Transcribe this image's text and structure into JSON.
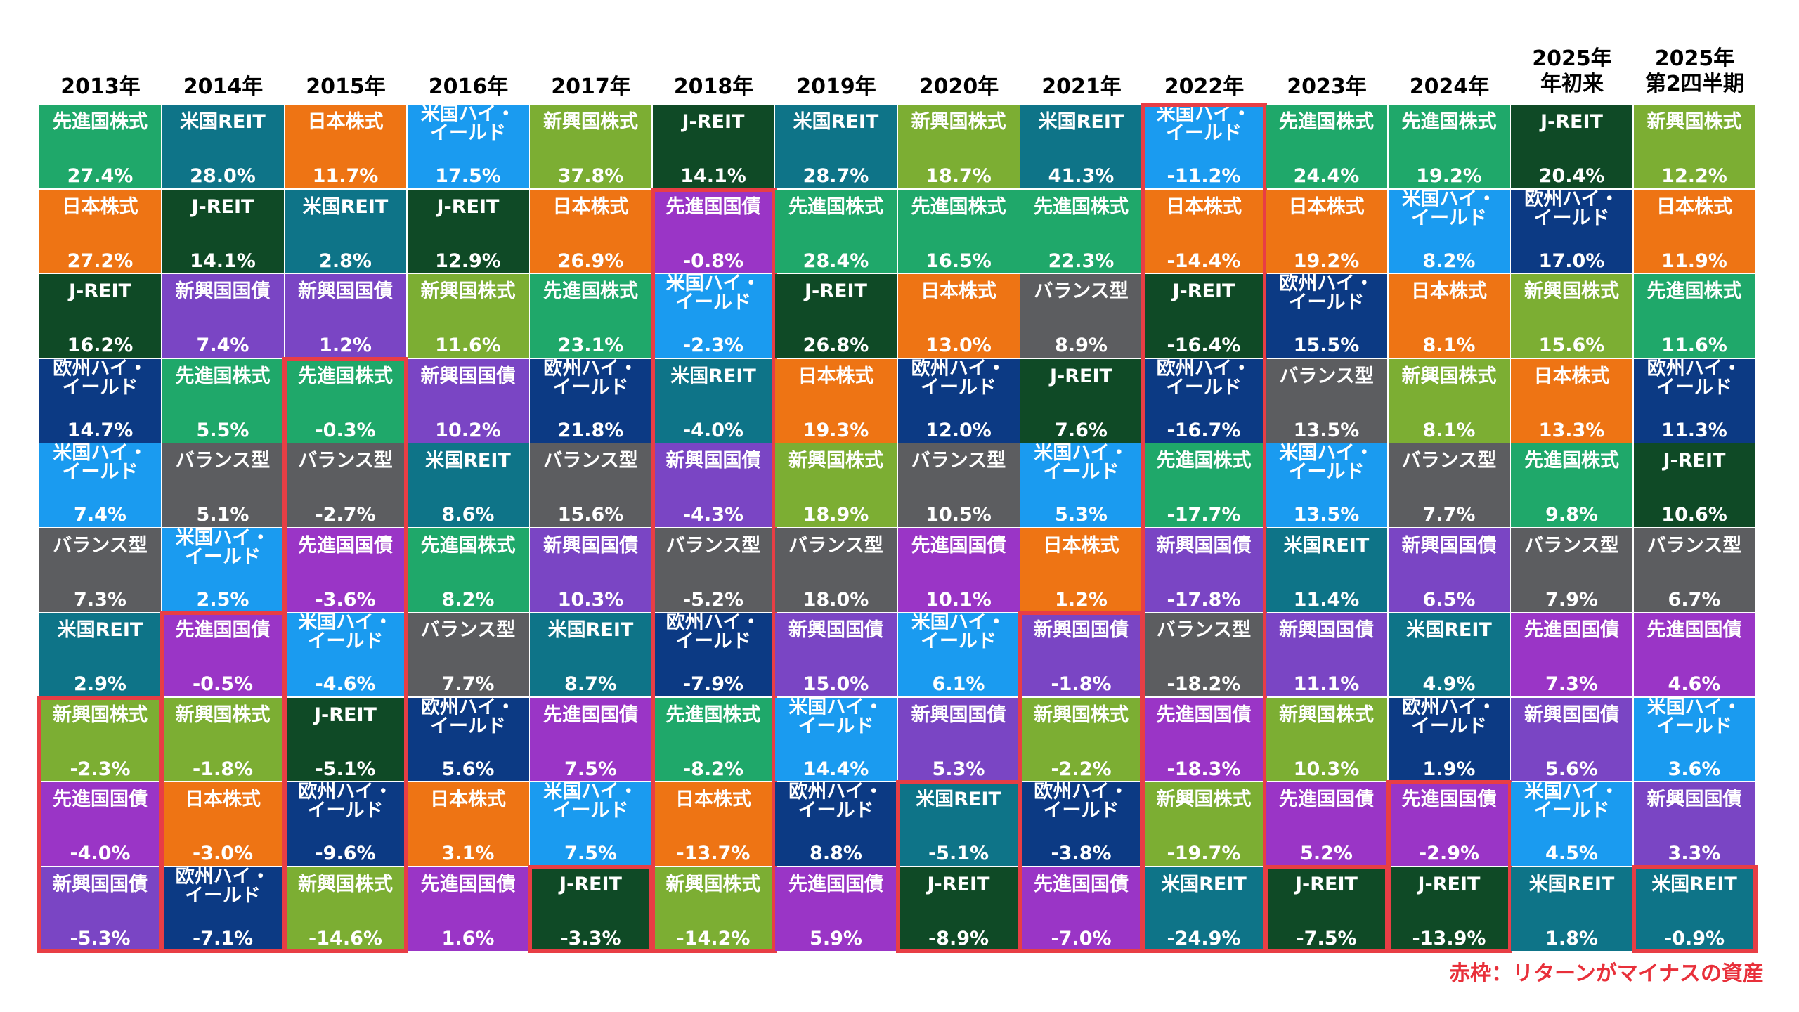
{
  "colors": {
    "先進国株式": "#1fa86a",
    "米国REIT": "#0e7488",
    "日本株式": "#ee7414",
    "米国ハイ・イールド": "#1a9bf0",
    "新興国株式": "#7cae33",
    "J-REIT": "#0f4a26",
    "新興国国債": "#7a45c4",
    "欧州ハイ・イールド": "#0c3a84",
    "バランス型": "#5c5d60",
    "先進国国債": "#9a35c6",
    "highlight": "#e83e45"
  },
  "note": "赤枠：リターンがマイナスの資産",
  "chart_data": {
    "type": "table",
    "title": "",
    "columns": [
      {
        "year": [
          "2013年"
        ],
        "cells": [
          {
            "asset": "先進国株式",
            "value": "27.4%"
          },
          {
            "asset": "日本株式",
            "value": "27.2%"
          },
          {
            "asset": "J-REIT",
            "value": "16.2%"
          },
          {
            "asset": "欧州ハイ・イールド",
            "value": "14.7%"
          },
          {
            "asset": "米国ハイ・イールド",
            "value": "7.4%"
          },
          {
            "asset": "バランス型",
            "value": "7.3%"
          },
          {
            "asset": "米国REIT",
            "value": "2.9%"
          },
          {
            "asset": "新興国株式",
            "value": "-2.3%"
          },
          {
            "asset": "先進国国債",
            "value": "-4.0%"
          },
          {
            "asset": "新興国国債",
            "value": "-5.3%"
          }
        ]
      },
      {
        "year": [
          "2014年"
        ],
        "cells": [
          {
            "asset": "米国REIT",
            "value": "28.0%"
          },
          {
            "asset": "J-REIT",
            "value": "14.1%"
          },
          {
            "asset": "新興国国債",
            "value": "7.4%"
          },
          {
            "asset": "先進国株式",
            "value": "5.5%"
          },
          {
            "asset": "バランス型",
            "value": "5.1%"
          },
          {
            "asset": "米国ハイ・イールド",
            "value": "2.5%"
          },
          {
            "asset": "先進国国債",
            "value": "-0.5%"
          },
          {
            "asset": "新興国株式",
            "value": "-1.8%"
          },
          {
            "asset": "日本株式",
            "value": "-3.0%"
          },
          {
            "asset": "欧州ハイ・イールド",
            "value": "-7.1%"
          }
        ]
      },
      {
        "year": [
          "2015年"
        ],
        "cells": [
          {
            "asset": "日本株式",
            "value": "11.7%"
          },
          {
            "asset": "米国REIT",
            "value": "2.8%"
          },
          {
            "asset": "新興国国債",
            "value": "1.2%"
          },
          {
            "asset": "先進国株式",
            "value": "-0.3%"
          },
          {
            "asset": "バランス型",
            "value": "-2.7%"
          },
          {
            "asset": "先進国国債",
            "value": "-3.6%"
          },
          {
            "asset": "米国ハイ・イールド",
            "value": "-4.6%"
          },
          {
            "asset": "J-REIT",
            "value": "-5.1%"
          },
          {
            "asset": "欧州ハイ・イールド",
            "value": "-9.6%"
          },
          {
            "asset": "新興国株式",
            "value": "-14.6%"
          }
        ]
      },
      {
        "year": [
          "2016年"
        ],
        "cells": [
          {
            "asset": "米国ハイ・イールド",
            "value": "17.5%"
          },
          {
            "asset": "J-REIT",
            "value": "12.9%"
          },
          {
            "asset": "新興国株式",
            "value": "11.6%"
          },
          {
            "asset": "新興国国債",
            "value": "10.2%"
          },
          {
            "asset": "米国REIT",
            "value": "8.6%"
          },
          {
            "asset": "先進国株式",
            "value": "8.2%"
          },
          {
            "asset": "バランス型",
            "value": "7.7%"
          },
          {
            "asset": "欧州ハイ・イールド",
            "value": "5.6%"
          },
          {
            "asset": "日本株式",
            "value": "3.1%"
          },
          {
            "asset": "先進国国債",
            "value": "1.6%"
          }
        ]
      },
      {
        "year": [
          "2017年"
        ],
        "cells": [
          {
            "asset": "新興国株式",
            "value": "37.8%"
          },
          {
            "asset": "日本株式",
            "value": "26.9%"
          },
          {
            "asset": "先進国株式",
            "value": "23.1%"
          },
          {
            "asset": "欧州ハイ・イールド",
            "value": "21.8%"
          },
          {
            "asset": "バランス型",
            "value": "15.6%"
          },
          {
            "asset": "新興国国債",
            "value": "10.3%"
          },
          {
            "asset": "米国REIT",
            "value": "8.7%"
          },
          {
            "asset": "先進国国債",
            "value": "7.5%"
          },
          {
            "asset": "米国ハイ・イールド",
            "value": "7.5%"
          },
          {
            "asset": "J-REIT",
            "value": "-3.3%"
          }
        ]
      },
      {
        "year": [
          "2018年"
        ],
        "cells": [
          {
            "asset": "J-REIT",
            "value": "14.1%"
          },
          {
            "asset": "先進国国債",
            "value": "-0.8%"
          },
          {
            "asset": "米国ハイ・イールド",
            "value": "-2.3%"
          },
          {
            "asset": "米国REIT",
            "value": "-4.0%"
          },
          {
            "asset": "新興国国債",
            "value": "-4.3%"
          },
          {
            "asset": "バランス型",
            "value": "-5.2%"
          },
          {
            "asset": "欧州ハイ・イールド",
            "value": "-7.9%"
          },
          {
            "asset": "先進国株式",
            "value": "-8.2%"
          },
          {
            "asset": "日本株式",
            "value": "-13.7%"
          },
          {
            "asset": "新興国株式",
            "value": "-14.2%"
          }
        ]
      },
      {
        "year": [
          "2019年"
        ],
        "cells": [
          {
            "asset": "米国REIT",
            "value": "28.7%"
          },
          {
            "asset": "先進国株式",
            "value": "28.4%"
          },
          {
            "asset": "J-REIT",
            "value": "26.8%"
          },
          {
            "asset": "日本株式",
            "value": "19.3%"
          },
          {
            "asset": "新興国株式",
            "value": "18.9%"
          },
          {
            "asset": "バランス型",
            "value": "18.0%"
          },
          {
            "asset": "新興国国債",
            "value": "15.0%"
          },
          {
            "asset": "米国ハイ・イールド",
            "value": "14.4%"
          },
          {
            "asset": "欧州ハイ・イールド",
            "value": "8.8%"
          },
          {
            "asset": "先進国国債",
            "value": "5.9%"
          }
        ]
      },
      {
        "year": [
          "2020年"
        ],
        "cells": [
          {
            "asset": "新興国株式",
            "value": "18.7%"
          },
          {
            "asset": "先進国株式",
            "value": "16.5%"
          },
          {
            "asset": "日本株式",
            "value": "13.0%"
          },
          {
            "asset": "欧州ハイ・イールド",
            "value": "12.0%"
          },
          {
            "asset": "バランス型",
            "value": "10.5%"
          },
          {
            "asset": "先進国国債",
            "value": "10.1%"
          },
          {
            "asset": "米国ハイ・イールド",
            "value": "6.1%"
          },
          {
            "asset": "新興国国債",
            "value": "5.3%"
          },
          {
            "asset": "米国REIT",
            "value": "-5.1%"
          },
          {
            "asset": "J-REIT",
            "value": "-8.9%"
          }
        ]
      },
      {
        "year": [
          "2021年"
        ],
        "cells": [
          {
            "asset": "米国REIT",
            "value": "41.3%"
          },
          {
            "asset": "先進国株式",
            "value": "22.3%"
          },
          {
            "asset": "バランス型",
            "value": "8.9%"
          },
          {
            "asset": "J-REIT",
            "value": "7.6%"
          },
          {
            "asset": "米国ハイ・イールド",
            "value": "5.3%"
          },
          {
            "asset": "日本株式",
            "value": "1.2%"
          },
          {
            "asset": "新興国国債",
            "value": "-1.8%"
          },
          {
            "asset": "新興国株式",
            "value": "-2.2%"
          },
          {
            "asset": "欧州ハイ・イールド",
            "value": "-3.8%"
          },
          {
            "asset": "先進国国債",
            "value": "-7.0%"
          }
        ]
      },
      {
        "year": [
          "2022年"
        ],
        "cells": [
          {
            "asset": "米国ハイ・イールド",
            "value": "-11.2%"
          },
          {
            "asset": "日本株式",
            "value": "-14.4%"
          },
          {
            "asset": "J-REIT",
            "value": "-16.4%"
          },
          {
            "asset": "欧州ハイ・イールド",
            "value": "-16.7%"
          },
          {
            "asset": "先進国株式",
            "value": "-17.7%"
          },
          {
            "asset": "新興国国債",
            "value": "-17.8%"
          },
          {
            "asset": "バランス型",
            "value": "-18.2%"
          },
          {
            "asset": "先進国国債",
            "value": "-18.3%"
          },
          {
            "asset": "新興国株式",
            "value": "-19.7%"
          },
          {
            "asset": "米国REIT",
            "value": "-24.9%"
          }
        ]
      },
      {
        "year": [
          "2023年"
        ],
        "cells": [
          {
            "asset": "先進国株式",
            "value": "24.4%"
          },
          {
            "asset": "日本株式",
            "value": "19.2%"
          },
          {
            "asset": "欧州ハイ・イールド",
            "value": "15.5%"
          },
          {
            "asset": "バランス型",
            "value": "13.5%"
          },
          {
            "asset": "米国ハイ・イールド",
            "value": "13.5%"
          },
          {
            "asset": "米国REIT",
            "value": "11.4%"
          },
          {
            "asset": "新興国国債",
            "value": "11.1%"
          },
          {
            "asset": "新興国株式",
            "value": "10.3%"
          },
          {
            "asset": "先進国国債",
            "value": "5.2%"
          },
          {
            "asset": "J-REIT",
            "value": "-7.5%"
          }
        ]
      },
      {
        "year": [
          "2024年"
        ],
        "cells": [
          {
            "asset": "先進国株式",
            "value": "19.2%"
          },
          {
            "asset": "米国ハイ・イールド",
            "value": "8.2%"
          },
          {
            "asset": "日本株式",
            "value": "8.1%"
          },
          {
            "asset": "新興国株式",
            "value": "8.1%"
          },
          {
            "asset": "バランス型",
            "value": "7.7%"
          },
          {
            "asset": "新興国国債",
            "value": "6.5%"
          },
          {
            "asset": "米国REIT",
            "value": "4.9%"
          },
          {
            "asset": "欧州ハイ・イールド",
            "value": "1.9%"
          },
          {
            "asset": "先進国国債",
            "value": "-2.9%"
          },
          {
            "asset": "J-REIT",
            "value": "-13.9%"
          }
        ]
      },
      {
        "year": [
          "2025年",
          "年初来"
        ],
        "cells": [
          {
            "asset": "J-REIT",
            "value": "20.4%"
          },
          {
            "asset": "欧州ハイ・イールド",
            "value": "17.0%"
          },
          {
            "asset": "新興国株式",
            "value": "15.6%"
          },
          {
            "asset": "日本株式",
            "value": "13.3%"
          },
          {
            "asset": "先進国株式",
            "value": "9.8%"
          },
          {
            "asset": "バランス型",
            "value": "7.9%"
          },
          {
            "asset": "先進国国債",
            "value": "7.3%"
          },
          {
            "asset": "新興国国債",
            "value": "5.6%"
          },
          {
            "asset": "米国ハイ・イールド",
            "value": "4.5%"
          },
          {
            "asset": "米国REIT",
            "value": "1.8%"
          }
        ]
      },
      {
        "year": [
          "2025年",
          "第2四半期"
        ],
        "cells": [
          {
            "asset": "新興国株式",
            "value": "12.2%"
          },
          {
            "asset": "日本株式",
            "value": "11.9%"
          },
          {
            "asset": "先進国株式",
            "value": "11.6%"
          },
          {
            "asset": "欧州ハイ・イールド",
            "value": "11.3%"
          },
          {
            "asset": "J-REIT",
            "value": "10.6%"
          },
          {
            "asset": "バランス型",
            "value": "6.7%"
          },
          {
            "asset": "先進国国債",
            "value": "4.6%"
          },
          {
            "asset": "米国ハイ・イールド",
            "value": "3.6%"
          },
          {
            "asset": "新興国国債",
            "value": "3.3%"
          },
          {
            "asset": "米国REIT",
            "value": "-0.9%"
          }
        ]
      }
    ]
  }
}
